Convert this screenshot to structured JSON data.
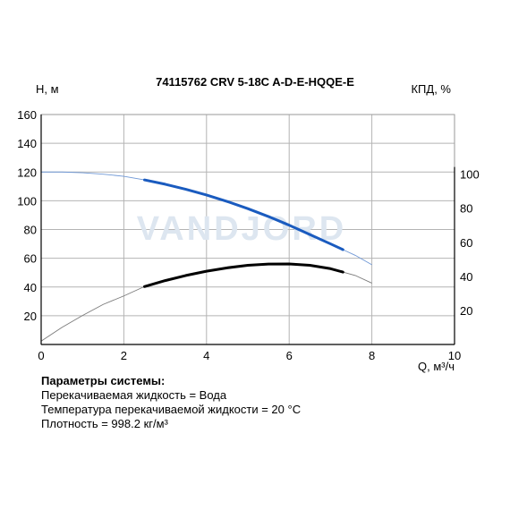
{
  "chart_data": {
    "type": "line",
    "title": "74115762 CRV 5-18C A-D-E-HQQE-E",
    "ylabel_left": "H, м",
    "ylabel_right": "КПД, %",
    "xlabel": "Q, м³/ч",
    "watermark": "VANDJORD",
    "xlim": [
      0,
      10
    ],
    "ylim_left": [
      0,
      160
    ],
    "ylim_right": [
      0,
      135
    ],
    "x_ticks": [
      0,
      2,
      4,
      6,
      8,
      10
    ],
    "y_ticks_left": [
      20,
      40,
      60,
      80,
      100,
      120,
      140,
      160
    ],
    "y_ticks_right": [
      20,
      40,
      60,
      80,
      100
    ],
    "grid": true,
    "series": [
      {
        "axis": "left",
        "color": "#1a5bbf",
        "x": [
          0,
          0.5,
          1,
          1.5,
          2,
          2.5,
          3,
          3.5,
          4,
          4.5,
          5,
          5.5,
          6,
          6.5,
          7,
          7.3,
          7.6,
          8
        ],
        "values": [
          120,
          120,
          119.5,
          118.5,
          117,
          114.5,
          111.5,
          108,
          104,
          99.5,
          94.5,
          89,
          83,
          76.5,
          70,
          66,
          62,
          55.5
        ],
        "highlight_range": [
          2.5,
          7.3
        ]
      },
      {
        "axis": "right",
        "color": "#000000",
        "x": [
          0,
          0.5,
          1,
          1.5,
          2,
          2.5,
          3,
          3.5,
          4,
          4.5,
          5,
          5.5,
          6,
          6.5,
          7,
          7.3,
          7.6,
          8
        ],
        "values": [
          2,
          10,
          17,
          23.5,
          28.5,
          34,
          37.5,
          40.5,
          43,
          45,
          46.5,
          47.2,
          47.3,
          46.5,
          44.5,
          42.5,
          40.5,
          36
        ],
        "highlight_range": [
          2.5,
          7.3
        ]
      }
    ]
  },
  "params": {
    "title": "Параметры системы:",
    "lines": [
      "Перекачиваемая жидкость = Вода",
      "Температура перекачиваемой жидкости = 20 °C",
      "Плотность = 998.2 кг/м³"
    ]
  }
}
